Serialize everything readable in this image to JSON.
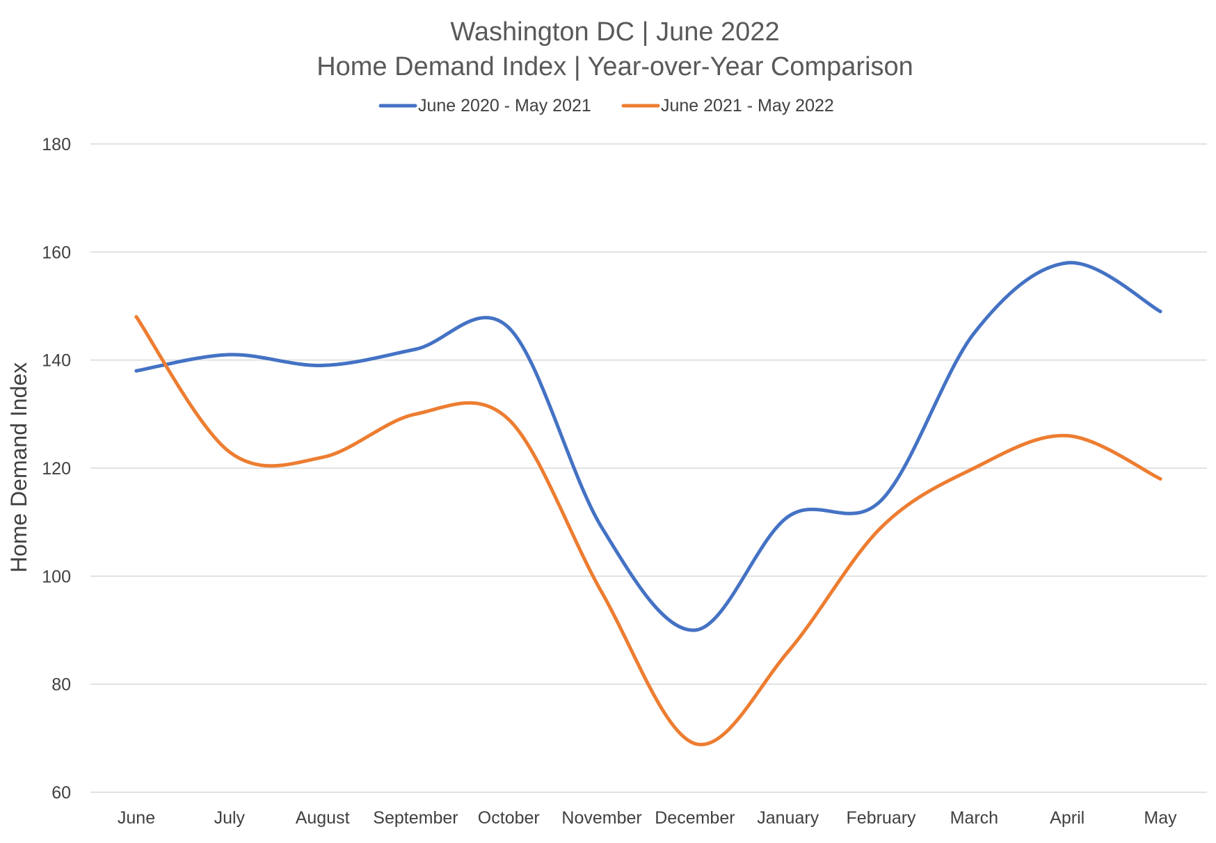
{
  "chart_data": {
    "type": "line",
    "smooth": true,
    "title_lines": [
      "Washington DC | June 2022",
      "Home Demand Index | Year-over-Year Comparison"
    ],
    "xlabel": "",
    "ylabel": "Home Demand Index",
    "ylim": [
      60,
      180
    ],
    "yticks": [
      60,
      80,
      100,
      120,
      140,
      160,
      180
    ],
    "grid": true,
    "legend_position": "top-center",
    "categories": [
      "June",
      "July",
      "August",
      "September",
      "October",
      "November",
      "December",
      "January",
      "February",
      "March",
      "April",
      "May"
    ],
    "series": [
      {
        "name": "June 2020 - May 2021",
        "color": "#4472c4",
        "values": [
          138,
          141,
          139,
          142,
          146,
          109,
          90,
          111,
          114,
          145,
          158,
          149
        ]
      },
      {
        "name": "June 2021 - May 2022",
        "color": "#ed7d31",
        "values": [
          148,
          123,
          122,
          130,
          129,
          97,
          69,
          86,
          109,
          120,
          126,
          118
        ]
      }
    ]
  }
}
